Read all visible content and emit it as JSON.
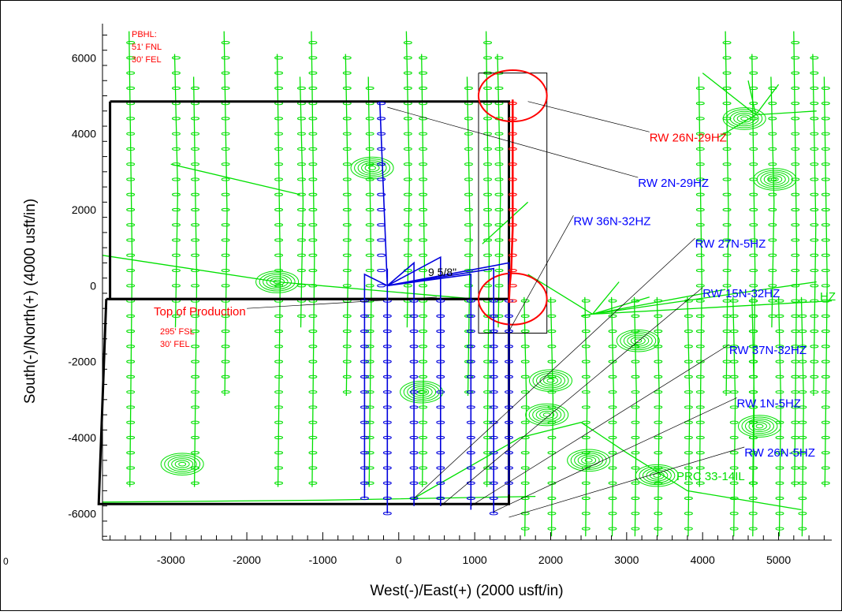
{
  "chart_data": {
    "type": "scatter",
    "title": "",
    "xlabel": "West(-)/East(+) (2000 usft/in)",
    "ylabel": "South(-)/North(+) (4000 usft/in)",
    "xlim": [
      -3900,
      5700
    ],
    "ylim": [
      -6700,
      6900
    ],
    "x_ticks": [
      -3000,
      -2000,
      -1000,
      0,
      1000,
      2000,
      3000,
      4000,
      5000
    ],
    "y_ticks": [
      6000,
      4000,
      2000,
      0,
      -2000,
      -4000,
      -6000
    ],
    "grid": false,
    "stray_label": "0",
    "colors": {
      "subject_well": "#ff0000",
      "pad_wells": "#0000dd",
      "offset_wells": "#00e000",
      "frame": "#000000",
      "annotation_red": "#ff0000",
      "annotation_blue": "#0000ff"
    },
    "subject_well": {
      "name": "RW 26N-29HZ",
      "x": [
        1450,
        1460,
        1480,
        1500,
        1500,
        1500,
        1500,
        1500
      ],
      "y": [
        -450,
        0,
        400,
        1500,
        2500,
        3500,
        4400,
        4900
      ]
    },
    "pad_wells_x": [
      -450,
      -150,
      200,
      550,
      950,
      1250,
      1450
    ],
    "pad_well_bottom_y": [
      -5600,
      -6000,
      -5800,
      -5800,
      -5900,
      -6000,
      -5500
    ],
    "pad_lateral_top_y": 4850,
    "pad_lateral_top_x": -250,
    "pad_surface": {
      "x": -150,
      "y": 0
    },
    "offset_vertical_wells_x": [
      -3550,
      -2950,
      -2700,
      -2300,
      -1600,
      -1300,
      -1150,
      -700,
      -400,
      100,
      300,
      900,
      1150,
      1300,
      3950,
      4300,
      4650,
      4900,
      5200,
      5450,
      5600
    ],
    "offset_lower_wells_x": [
      1650,
      2000,
      2450,
      2800,
      3100,
      3400,
      3800,
      4400,
      4650,
      5000,
      5300
    ],
    "targets": [
      {
        "x": -350,
        "y": 3100
      },
      {
        "x": -1600,
        "y": 100
      },
      {
        "x": 300,
        "y": -2800
      },
      {
        "x": 2000,
        "y": -2500
      },
      {
        "x": 1950,
        "y": -3400
      },
      {
        "x": 2500,
        "y": -4600
      },
      {
        "x": 3400,
        "y": -5000
      },
      {
        "x": 4750,
        "y": -3700
      },
      {
        "x": -2850,
        "y": -4700
      },
      {
        "x": 4550,
        "y": 4400
      },
      {
        "x": 4950,
        "y": 2800
      },
      {
        "x": 3150,
        "y": -1450
      }
    ],
    "pbhl": {
      "label_lines": [
        "PBHL:",
        "51' FNL",
        "30' FEL"
      ]
    },
    "top_of_production": {
      "label": "Top of Production",
      "detail_lines": [
        "295' FSL",
        "30' FEL"
      ]
    },
    "casing_label": "9 5/8\"",
    "well_labels": [
      {
        "text": "RW  26N-29HZ",
        "color": "red",
        "x": 3300,
        "y": 3800,
        "leader_x": 1700,
        "leader_y": 4850
      },
      {
        "text": "RW  2N-29HZ",
        "color": "blue",
        "x": 3150,
        "y": 2600,
        "leader_x": -150,
        "leader_y": 4700
      },
      {
        "text": "RW  36N-32HZ",
        "color": "blue",
        "x": 2300,
        "y": 1600,
        "leader_x": 1450,
        "leader_y": -1200
      },
      {
        "text": "RW  27N-5HZ",
        "color": "blue",
        "x": 3900,
        "y": 1000,
        "leader_x": 200,
        "leader_y": -5600
      },
      {
        "text": "RW  15N-32HZ",
        "color": "blue",
        "x": 4000,
        "y": -300,
        "leader_x": 550,
        "leader_y": -5800
      },
      {
        "text": "RW  37N-32HZ",
        "color": "blue",
        "x": 4350,
        "y": -1800,
        "leader_x": 950,
        "leader_y": -5800
      },
      {
        "text": "RW  1N-5HZ",
        "color": "blue",
        "x": 4450,
        "y": -3200,
        "leader_x": 1250,
        "leader_y": -5950
      },
      {
        "text": "RW  26N-5HZ",
        "color": "blue",
        "x": 4550,
        "y": -4500,
        "leader_x": 1450,
        "leader_y": -6100
      }
    ],
    "offset_label": {
      "text": "PRC 33-14IL",
      "x": 3750,
      "y": -5200
    },
    "overflow_label": {
      "text": "HZ",
      "x": 5580,
      "y": -300
    },
    "lease_outline_upper": [
      [
        -3800,
        4850
      ],
      [
        1450,
        4850
      ],
      [
        1450,
        -350
      ],
      [
        -3800,
        -350
      ]
    ],
    "lease_outline_lower": [
      [
        -3850,
        -350
      ],
      [
        1450,
        -350
      ],
      [
        1450,
        -5750
      ],
      [
        -3950,
        -5750
      ]
    ],
    "zoom_box": [
      [
        1050,
        5600
      ],
      [
        1950,
        5600
      ],
      [
        1950,
        -1250
      ],
      [
        1050,
        -1250
      ]
    ],
    "circles": [
      {
        "x": 1500,
        "y": 5000,
        "r": 450
      },
      {
        "x": 1500,
        "y": -350,
        "r": 450
      }
    ]
  }
}
